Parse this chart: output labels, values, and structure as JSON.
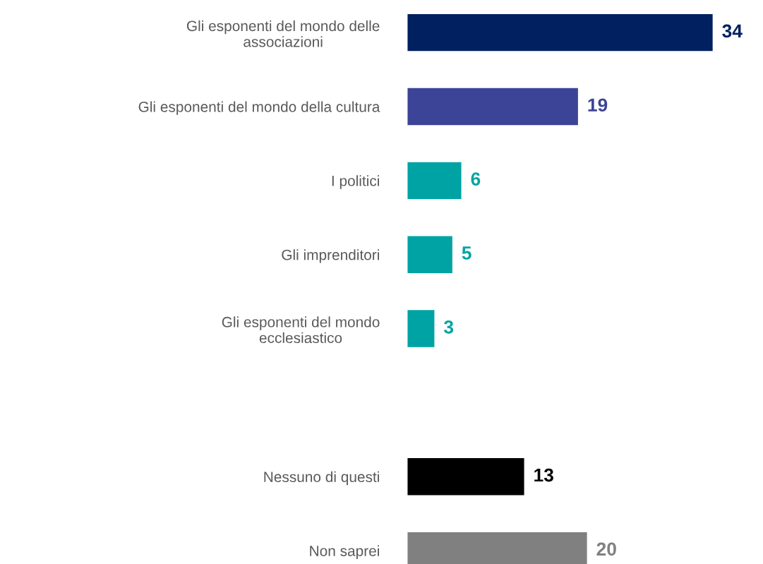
{
  "chart_data": {
    "type": "bar",
    "orientation": "horizontal",
    "categories": [
      "Gli esponenti del mondo delle\nassociazioni",
      "Gli esponenti del mondo della cultura",
      "I politici",
      "Gli imprenditori",
      "Gli esponenti del mondo\necclesiastico",
      null,
      "Nessuno di questi",
      "Non saprei"
    ],
    "values": [
      34,
      19,
      6,
      5,
      3,
      null,
      13,
      20
    ],
    "colors": [
      "#002060",
      "#3c4497",
      "#00a3a3",
      "#00a3a3",
      "#00a3a3",
      "#00a3a3",
      "#000000",
      "#808080"
    ],
    "data_labels": true,
    "grid": false,
    "legend": false
  }
}
